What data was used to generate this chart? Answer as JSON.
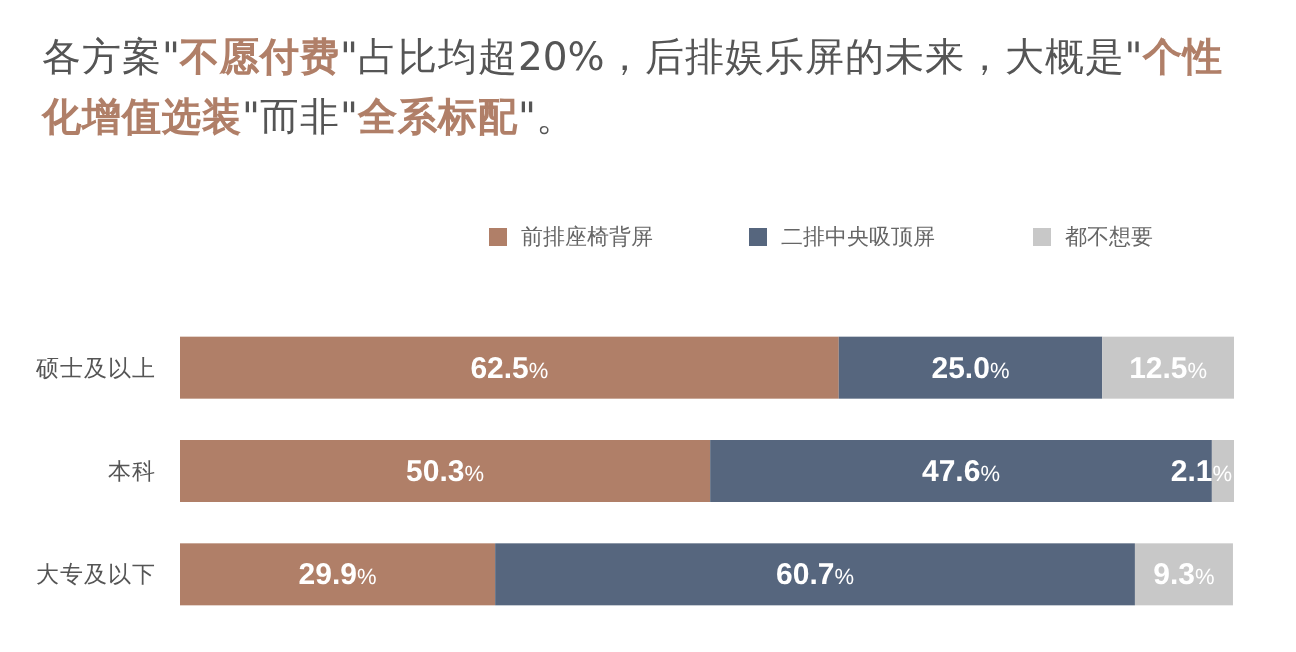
{
  "chart_data": {
    "type": "bar",
    "orientation": "horizontal",
    "stacked": true,
    "title": "各方案\"**不愿付费**\"占比均超20%，后排娱乐屏的未来，大概是\"**个性化增值选装**\"而非\"**全系标配**\"。",
    "categories": [
      "硕士及以上",
      "本科",
      "大专及以下"
    ],
    "xlim": [
      0,
      100
    ],
    "legend": "top",
    "series": [
      {
        "name": "前排座椅背屏",
        "color": "#b07f68",
        "values": [
          62.5,
          50.3,
          29.9
        ],
        "value_labels": [
          "62.5%",
          "50.3%",
          "29.9%"
        ]
      },
      {
        "name": "二排中央吸顶屏",
        "color": "#56667e",
        "values": [
          25.0,
          47.6,
          60.7
        ],
        "value_labels": [
          "25.0%",
          "47.6%",
          "60.7%"
        ]
      },
      {
        "name": "都不想要",
        "color": "#c8c8c8",
        "values": [
          12.5,
          2.1,
          9.3
        ],
        "value_labels": [
          "12.5%",
          "2.1%",
          "9.3%"
        ]
      }
    ]
  }
}
